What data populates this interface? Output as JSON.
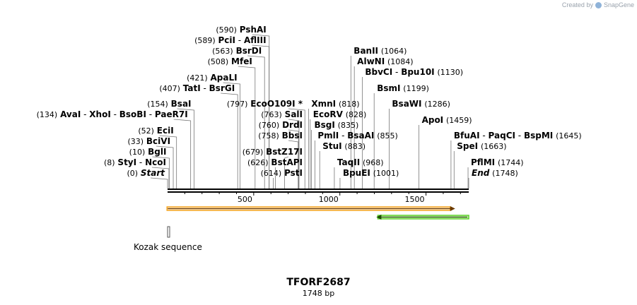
{
  "credit": {
    "prefix": "Created by",
    "brand": "SnapGene"
  },
  "sequence": {
    "name": "TFORF2687",
    "length_text": "1748 bp",
    "length": 1748
  },
  "ticks": [
    "500",
    "1000",
    "1500"
  ],
  "features": [
    {
      "name": "orf-forward",
      "start": 1,
      "end": 1665,
      "strand": "+",
      "color": "#f5a623"
    },
    {
      "name": "orf-reverse",
      "start": 1212,
      "end": 1748,
      "strand": "-",
      "color": "#5dd12b"
    },
    {
      "name": "kozak",
      "start": 0,
      "end": 8,
      "strand": "none",
      "color": "#888888",
      "label": "Kozak sequence"
    }
  ],
  "sites": [
    {
      "side": "left",
      "pos": 0,
      "names": [
        "Start"
      ],
      "pos_text": "(0)",
      "italic": true
    },
    {
      "side": "left",
      "pos": 8,
      "names": [
        "StyI",
        "NcoI"
      ],
      "pos_text": "(8)"
    },
    {
      "side": "left",
      "pos": 10,
      "names": [
        "BglI"
      ],
      "pos_text": "(10)"
    },
    {
      "side": "left",
      "pos": 33,
      "names": [
        "BciVI"
      ],
      "pos_text": "(33)"
    },
    {
      "side": "left",
      "pos": 52,
      "names": [
        "EciI"
      ],
      "pos_text": "(52)"
    },
    {
      "side": "left",
      "pos": 134,
      "names": [
        "AvaI",
        "XhoI",
        "BsoBI",
        "PaeR7I"
      ],
      "pos_text": "(134)"
    },
    {
      "side": "left",
      "pos": 154,
      "names": [
        "BsaI"
      ],
      "pos_text": "(154)"
    },
    {
      "side": "left",
      "pos": 407,
      "names": [
        "TatI",
        "BsrGI"
      ],
      "pos_text": "(407)"
    },
    {
      "side": "left",
      "pos": 421,
      "names": [
        "ApaLI"
      ],
      "pos_text": "(421)"
    },
    {
      "side": "left",
      "pos": 508,
      "names": [
        "MfeI"
      ],
      "pos_text": "(508)"
    },
    {
      "side": "left",
      "pos": 563,
      "names": [
        "BsrDI"
      ],
      "pos_text": "(563)"
    },
    {
      "side": "left",
      "pos": 589,
      "names": [
        "PciI",
        "AflIII"
      ],
      "pos_text": "(589)"
    },
    {
      "side": "left",
      "pos": 590,
      "names": [
        "PshAI"
      ],
      "pos_text": "(590)"
    },
    {
      "side": "left",
      "pos": 614,
      "names": [
        "PstI"
      ],
      "pos_text": "(614)"
    },
    {
      "side": "left",
      "pos": 626,
      "names": [
        "BstAPI"
      ],
      "pos_text": "(626)"
    },
    {
      "side": "left",
      "pos": 679,
      "names": [
        "BstZ17I"
      ],
      "pos_text": "(679)"
    },
    {
      "side": "left",
      "pos": 758,
      "names": [
        "BbsI"
      ],
      "pos_text": "(758)"
    },
    {
      "side": "left",
      "pos": 760,
      "names": [
        "DrdI"
      ],
      "pos_text": "(760)"
    },
    {
      "side": "left",
      "pos": 763,
      "names": [
        "SalI"
      ],
      "pos_text": "(763)"
    },
    {
      "side": "left",
      "pos": 797,
      "names": [
        "EcoO109I *"
      ],
      "pos_text": "(797)"
    },
    {
      "side": "right",
      "pos": 818,
      "names": [
        "XmnI"
      ],
      "pos_text": "(818)"
    },
    {
      "side": "right",
      "pos": 828,
      "names": [
        "EcoRV"
      ],
      "pos_text": "(828)"
    },
    {
      "side": "right",
      "pos": 835,
      "names": [
        "BsgI"
      ],
      "pos_text": "(835)"
    },
    {
      "side": "right",
      "pos": 855,
      "names": [
        "PmlI",
        "BsaAI"
      ],
      "pos_text": "(855)"
    },
    {
      "side": "right",
      "pos": 883,
      "names": [
        "StuI"
      ],
      "pos_text": "(883)"
    },
    {
      "side": "right",
      "pos": 968,
      "names": [
        "TaqII"
      ],
      "pos_text": "(968)"
    },
    {
      "side": "right",
      "pos": 1001,
      "names": [
        "BpuEI"
      ],
      "pos_text": "(1001)"
    },
    {
      "side": "right",
      "pos": 1064,
      "names": [
        "BanII"
      ],
      "pos_text": "(1064)"
    },
    {
      "side": "right",
      "pos": 1084,
      "names": [
        "AlwNI"
      ],
      "pos_text": "(1084)"
    },
    {
      "side": "right",
      "pos": 1130,
      "names": [
        "BbvCI",
        "Bpu10I"
      ],
      "pos_text": "(1130)"
    },
    {
      "side": "right",
      "pos": 1199,
      "names": [
        "BsmI"
      ],
      "pos_text": "(1199)"
    },
    {
      "side": "right",
      "pos": 1286,
      "names": [
        "BsaWI"
      ],
      "pos_text": "(1286)"
    },
    {
      "side": "right",
      "pos": 1459,
      "names": [
        "ApoI"
      ],
      "pos_text": "(1459)"
    },
    {
      "side": "right",
      "pos": 1645,
      "names": [
        "BfuAI",
        "PaqCI",
        "BspMI"
      ],
      "pos_text": "(1645)"
    },
    {
      "side": "right",
      "pos": 1663,
      "names": [
        "SpeI"
      ],
      "pos_text": "(1663)"
    },
    {
      "side": "right",
      "pos": 1744,
      "names": [
        "PflMI"
      ],
      "pos_text": "(1744)"
    },
    {
      "side": "right",
      "pos": 1748,
      "names": [
        "End"
      ],
      "pos_text": "(1748)",
      "italic": true
    }
  ]
}
